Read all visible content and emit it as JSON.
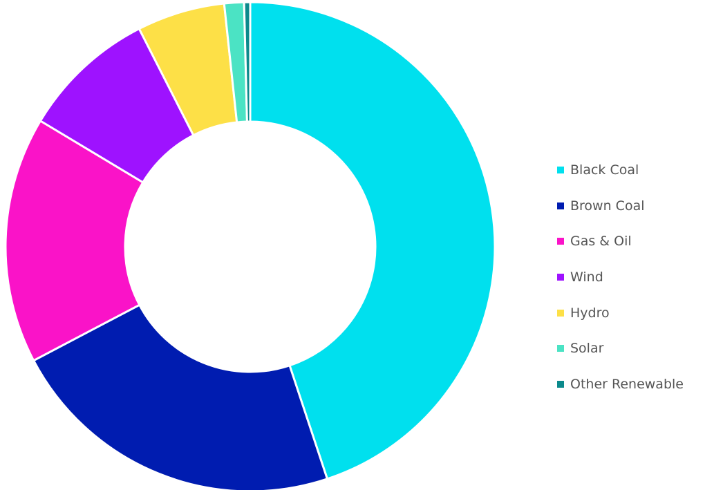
{
  "chart_data": {
    "type": "pie",
    "donut": true,
    "title": "",
    "legend_position": "right",
    "slices": [
      {
        "label": "Black Coal",
        "value": 44.9,
        "color": "#00E0EE"
      },
      {
        "label": "Brown Coal",
        "value": 22.4,
        "color": "#001CB0"
      },
      {
        "label": "Gas & Oil",
        "value": 16.3,
        "color": "#FA13C8"
      },
      {
        "label": "Wind",
        "value": 8.9,
        "color": "#9E12FF"
      },
      {
        "label": "Hydro",
        "value": 5.8,
        "color": "#FDE047"
      },
      {
        "label": "Solar",
        "value": 1.3,
        "color": "#4BE3C4"
      },
      {
        "label": "Other Renewable",
        "value": 0.4,
        "color": "#0B8A8C"
      }
    ]
  }
}
